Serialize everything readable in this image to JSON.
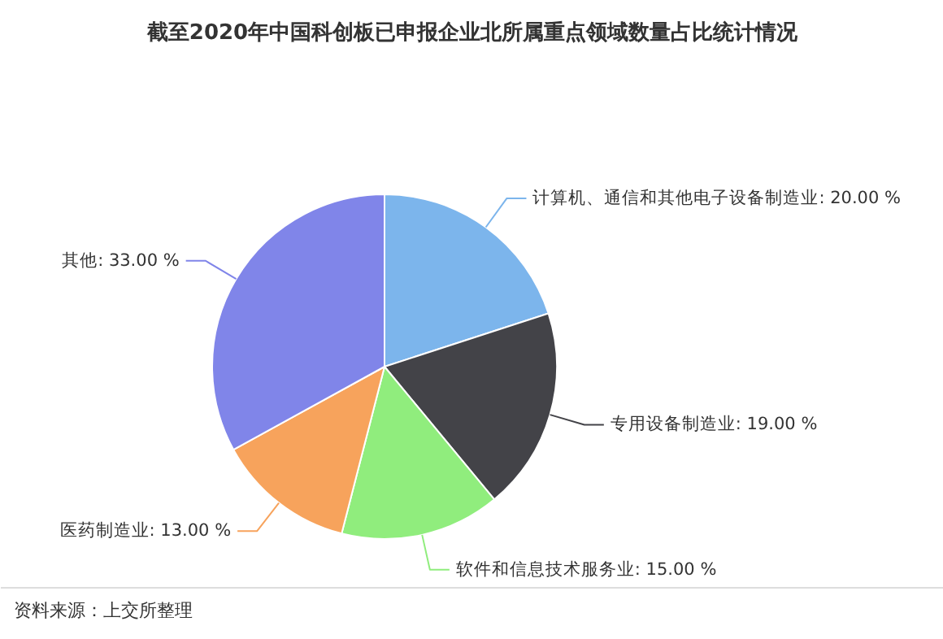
{
  "chart_data": {
    "type": "pie",
    "title": "截至2020年中国科创板已申报企业北所属重点领域数量占比统计情况",
    "categories": [
      "计算机、通信和其他电子设备制造业",
      "专用设备制造业",
      "软件和信息技术服务业",
      "医药制造业",
      "其他"
    ],
    "values": [
      20,
      19,
      15,
      13,
      33
    ],
    "colors": [
      "#7cb5ec",
      "#434348",
      "#90ed7d",
      "#f7a35c",
      "#8085e9"
    ],
    "value_labels": [
      "20.00 %",
      "19.00 %",
      "15.00 %",
      "13.00 %",
      "33.00 %"
    ],
    "annotations": [
      "资料来源：上交所整理"
    ]
  }
}
